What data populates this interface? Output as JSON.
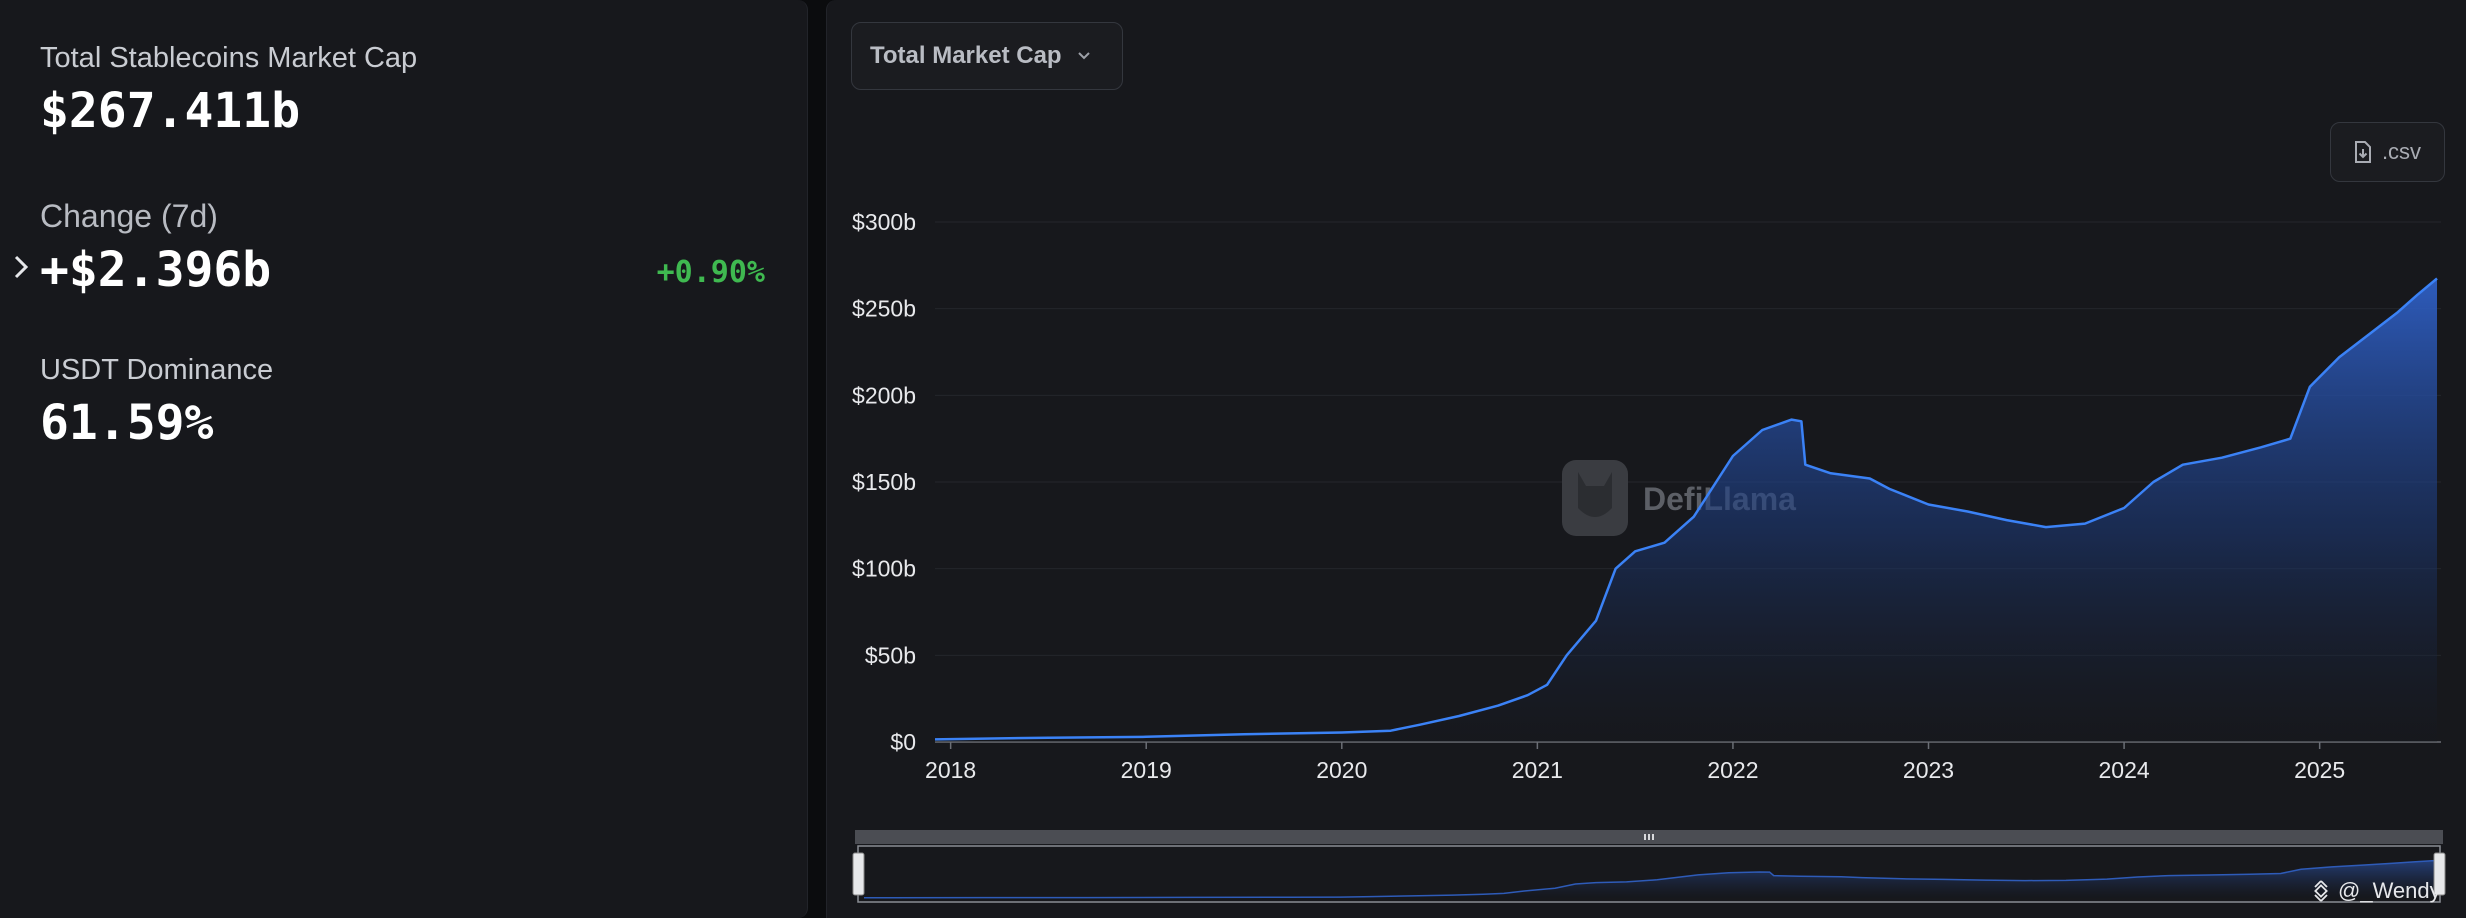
{
  "stats": {
    "total": {
      "label": "Total Stablecoins Market Cap",
      "value": "$267.411b"
    },
    "change": {
      "label": "Change (7d)",
      "value": "+$2.396b",
      "percent": "+0.90%"
    },
    "dominance": {
      "label": "USDT Dominance",
      "value": "61.59%"
    }
  },
  "toolbar": {
    "dropdown_label": "Total Market Cap",
    "csv_label": ".csv"
  },
  "watermark": {
    "text": "DefiLlama"
  },
  "credit": {
    "text": "@_Wendy"
  },
  "colors": {
    "accent": "#3b82f6",
    "positive": "#3fb950",
    "panel": "#17181c"
  },
  "chart_data": {
    "type": "area",
    "title": "",
    "xlabel": "",
    "ylabel": "",
    "grid": true,
    "ylim": [
      0,
      300
    ],
    "y_unit": "b",
    "yticks": [
      "$0",
      "$50b",
      "$100b",
      "$150b",
      "$200b",
      "$250b",
      "$300b"
    ],
    "xticks": [
      "2018",
      "2019",
      "2020",
      "2021",
      "2022",
      "2023",
      "2024",
      "2025"
    ],
    "xlim": [
      2017.92,
      2025.6
    ],
    "series": [
      {
        "values": [
          [
            2017.92,
            1.5
          ],
          [
            2018.5,
            2.5
          ],
          [
            2019.0,
            3.0
          ],
          [
            2019.5,
            4.5
          ],
          [
            2020.0,
            5.5
          ],
          [
            2020.25,
            6.5
          ],
          [
            2020.4,
            10.0
          ],
          [
            2020.6,
            15.0
          ],
          [
            2020.8,
            21.0
          ],
          [
            2020.95,
            27.0
          ],
          [
            2021.05,
            33.0
          ],
          [
            2021.15,
            50.0
          ],
          [
            2021.3,
            70.0
          ],
          [
            2021.4,
            100.0
          ],
          [
            2021.5,
            110.0
          ],
          [
            2021.65,
            115.0
          ],
          [
            2021.8,
            130.0
          ],
          [
            2022.0,
            165.0
          ],
          [
            2022.15,
            180.0
          ],
          [
            2022.3,
            186.0
          ],
          [
            2022.35,
            185.0
          ],
          [
            2022.37,
            160.0
          ],
          [
            2022.5,
            155.0
          ],
          [
            2022.7,
            152.0
          ],
          [
            2022.8,
            146.0
          ],
          [
            2023.0,
            137.0
          ],
          [
            2023.2,
            133.0
          ],
          [
            2023.4,
            128.0
          ],
          [
            2023.6,
            124.0
          ],
          [
            2023.8,
            126.0
          ],
          [
            2024.0,
            135.0
          ],
          [
            2024.15,
            150.0
          ],
          [
            2024.3,
            160.0
          ],
          [
            2024.5,
            164.0
          ],
          [
            2024.7,
            170.0
          ],
          [
            2024.85,
            175.0
          ],
          [
            2024.95,
            205.0
          ],
          [
            2025.1,
            222.0
          ],
          [
            2025.25,
            235.0
          ],
          [
            2025.4,
            248.0
          ],
          [
            2025.5,
            258.0
          ],
          [
            2025.6,
            267.4
          ]
        ]
      }
    ]
  }
}
